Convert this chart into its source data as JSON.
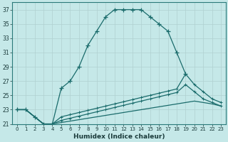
{
  "xlabel": "Humidex (Indice chaleur)",
  "bg_color": "#c5e8e8",
  "line_color": "#1a6b6b",
  "grid_color": "#b0d0d0",
  "xlim": [
    -0.5,
    23.5
  ],
  "ylim": [
    21,
    38
  ],
  "ytick_min": 21,
  "ytick_max": 37,
  "ytick_step": 2,
  "xticks": [
    0,
    1,
    2,
    3,
    4,
    5,
    6,
    7,
    8,
    9,
    10,
    11,
    12,
    13,
    14,
    15,
    16,
    17,
    18,
    19,
    20,
    21,
    22,
    23
  ],
  "yticks": [
    21,
    23,
    25,
    27,
    29,
    31,
    33,
    35,
    37
  ],
  "curve1_x": [
    0,
    1,
    2,
    3,
    4,
    5,
    6,
    7,
    8,
    9,
    10,
    11,
    12,
    13,
    14,
    15,
    16,
    17,
    18,
    19
  ],
  "curve1_y": [
    23,
    23,
    22,
    21,
    21,
    26,
    27,
    29,
    32,
    34,
    36,
    37,
    37,
    37,
    37,
    36,
    35,
    34,
    31,
    28
  ],
  "curve2_x": [
    0,
    1,
    2,
    3,
    4,
    5,
    6,
    7,
    8,
    9,
    10,
    11,
    12,
    13,
    14,
    15,
    16,
    17,
    18,
    19,
    20,
    21,
    22,
    23
  ],
  "curve2_y": [
    23,
    23,
    22,
    21,
    21,
    22,
    22.3,
    22.6,
    22.9,
    23.2,
    23.5,
    23.8,
    24.1,
    24.4,
    24.7,
    25.0,
    25.3,
    25.6,
    25.9,
    28,
    26.5,
    25.5,
    24.5,
    24.0
  ],
  "curve3_x": [
    0,
    1,
    2,
    3,
    4,
    5,
    6,
    7,
    8,
    9,
    10,
    11,
    12,
    13,
    14,
    15,
    16,
    17,
    18,
    19,
    20,
    21,
    22,
    23
  ],
  "curve3_y": [
    23,
    23,
    22,
    21,
    21,
    21.5,
    21.8,
    22.1,
    22.4,
    22.7,
    23.0,
    23.3,
    23.6,
    23.9,
    24.2,
    24.5,
    24.8,
    25.1,
    25.4,
    26.5,
    25.5,
    24.5,
    24.0,
    23.5
  ],
  "curve4_x": [
    0,
    1,
    2,
    3,
    4,
    5,
    6,
    7,
    8,
    9,
    10,
    11,
    12,
    13,
    14,
    15,
    16,
    17,
    18,
    19,
    20,
    21,
    22,
    23
  ],
  "curve4_y": [
    23,
    23,
    22,
    21,
    21,
    21.2,
    21.4,
    21.6,
    21.8,
    22.0,
    22.2,
    22.4,
    22.6,
    22.8,
    23.0,
    23.2,
    23.4,
    23.6,
    23.8,
    24.0,
    24.2,
    24.0,
    23.8,
    23.5
  ]
}
